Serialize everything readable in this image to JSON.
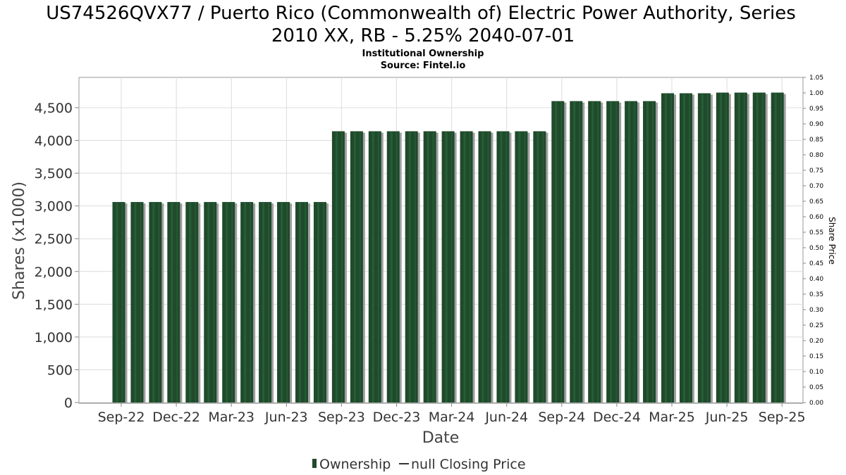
{
  "title_line1": "US74526QVX77 / Puerto Rico (Commonwealth of) Electric Power Authority, Series",
  "title_line2": "2010 XX, RB - 5.25% 2040-07-01",
  "subtitle1": "Institutional Ownership",
  "subtitle2": "Source: Fintel.io",
  "colors": {
    "bar": "#1f4a2b",
    "bar_stripe": "#2d6a3d",
    "bar_shadow": "#a0a0a0",
    "grid": "#dcdcdc"
  },
  "legend": {
    "ownership": "Ownership",
    "closing_price": "null Closing Price"
  },
  "chart_data": {
    "type": "bar",
    "title": "US74526QVX77 / Puerto Rico (Commonwealth of) Electric Power Authority, Series 2010 XX, RB - 5.25% 2040-07-01",
    "subtitle": "Institutional Ownership",
    "xlabel": "Date",
    "ylabel": "Shares (x1000)",
    "y2label": "Share Price",
    "ylim": [
      0,
      4950
    ],
    "y2lim": [
      0.0,
      1.05
    ],
    "yticks": [
      0,
      500,
      1000,
      1500,
      2000,
      2500,
      3000,
      3500,
      4000,
      4500
    ],
    "ytick_labels": [
      "0",
      "500",
      "1,000",
      "1,500",
      "2,000",
      "2,500",
      "3,000",
      "3,500",
      "4,000",
      "4,500"
    ],
    "y2ticks": [
      "0.00",
      "0.05",
      "0.10",
      "0.15",
      "0.20",
      "0.25",
      "0.30",
      "0.35",
      "0.40",
      "0.45",
      "0.50",
      "0.55",
      "0.60",
      "0.65",
      "0.70",
      "0.75",
      "0.80",
      "0.85",
      "0.90",
      "0.95",
      "1.00",
      "1.05"
    ],
    "x_ticks": [
      "Sep-22",
      "Dec-22",
      "Mar-23",
      "Jun-23",
      "Sep-23",
      "Dec-23",
      "Mar-24",
      "Jun-24",
      "Sep-24",
      "Dec-24",
      "Mar-25",
      "Jun-25",
      "Sep-25"
    ],
    "grid": true,
    "legend_position": "bottom",
    "series": [
      {
        "name": "Ownership",
        "values": [
          3060,
          3060,
          3060,
          3060,
          3060,
          3060,
          3060,
          3060,
          3060,
          3060,
          3060,
          3060,
          4140,
          4140,
          4140,
          4140,
          4140,
          4140,
          4140,
          4140,
          4140,
          4140,
          4140,
          4140,
          4600,
          4600,
          4600,
          4600,
          4600,
          4600,
          4720,
          4720,
          4720,
          4730,
          4730,
          4730,
          4730
        ]
      },
      {
        "name": "null Closing Price",
        "values": []
      }
    ]
  }
}
